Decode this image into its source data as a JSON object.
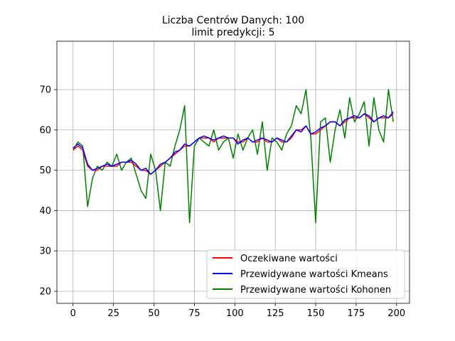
{
  "chart_data": {
    "type": "line",
    "title": "Liczba Centrów Danych: 100",
    "subtitle": "limit predykcji: 5",
    "xlabel": "",
    "ylabel": "",
    "xlim": [
      -10,
      208
    ],
    "ylim": [
      17,
      82
    ],
    "xticks": [
      0,
      25,
      50,
      75,
      100,
      125,
      150,
      175,
      200
    ],
    "yticks": [
      20,
      30,
      40,
      50,
      60,
      70
    ],
    "grid": true,
    "legend_position": "lower-right",
    "x": [
      0,
      3,
      6,
      9,
      12,
      15,
      18,
      21,
      24,
      27,
      30,
      33,
      36,
      39,
      42,
      45,
      48,
      51,
      54,
      57,
      60,
      63,
      66,
      69,
      72,
      75,
      78,
      81,
      84,
      87,
      90,
      93,
      96,
      99,
      102,
      105,
      108,
      111,
      114,
      117,
      120,
      123,
      126,
      129,
      132,
      135,
      138,
      141,
      144,
      147,
      150,
      153,
      156,
      159,
      162,
      165,
      168,
      171,
      174,
      177,
      180,
      183,
      186,
      189,
      192,
      195,
      198
    ],
    "series": [
      {
        "name": "Oczekiwane wartości",
        "color": "#ff0000",
        "values": [
          55,
          56,
          55,
          51,
          50,
          50,
          51,
          51,
          51,
          51,
          52,
          52,
          52,
          51,
          50,
          50,
          49,
          50,
          51,
          52,
          53,
          54,
          55,
          56,
          56,
          57,
          58,
          58,
          58,
          57,
          58,
          58,
          58,
          58,
          57,
          57,
          58,
          57,
          57,
          58,
          57,
          57,
          58,
          57,
          57,
          58,
          60,
          60,
          61,
          59,
          59,
          60,
          61,
          62,
          62,
          61,
          62,
          63,
          63,
          63,
          64,
          63,
          62,
          63,
          63,
          63,
          64
        ]
      },
      {
        "name": "Przewidywane wartości Kmeans",
        "color": "#0000ff",
        "values": [
          55.5,
          56.5,
          55.5,
          51.5,
          50,
          50.5,
          51,
          51.5,
          51,
          51.5,
          52,
          52,
          52.5,
          51.5,
          50,
          50.5,
          49,
          50,
          51.5,
          52,
          53,
          54.5,
          55,
          56.5,
          56,
          57,
          58,
          58.5,
          58,
          57.5,
          58,
          58.5,
          58,
          58,
          56.5,
          57.5,
          58,
          57,
          57.5,
          58,
          57.5,
          57,
          58,
          57.5,
          57,
          58.5,
          60,
          59.5,
          61,
          59,
          59.5,
          60.5,
          61,
          62,
          62,
          61,
          62.5,
          63,
          63.5,
          63,
          64,
          63.5,
          62,
          63,
          63.5,
          63,
          64.5
        ]
      },
      {
        "name": "Przewidywane wartości Kohonen",
        "color": "#008000",
        "values": [
          55,
          57,
          56,
          41,
          48,
          51,
          50,
          52,
          51,
          54,
          50,
          52,
          53,
          49,
          45,
          43,
          54,
          50,
          40,
          52,
          51,
          56,
          60,
          66,
          37,
          56,
          58,
          57,
          56,
          60,
          55,
          57,
          58,
          53,
          59,
          55,
          58,
          60,
          54,
          62,
          50,
          58,
          57,
          55,
          59,
          61,
          66,
          64,
          70,
          58,
          37,
          62,
          63,
          52,
          60,
          65,
          58,
          68,
          62,
          64,
          67,
          56,
          68,
          60,
          57,
          70,
          62
        ]
      }
    ],
    "annotations": []
  }
}
